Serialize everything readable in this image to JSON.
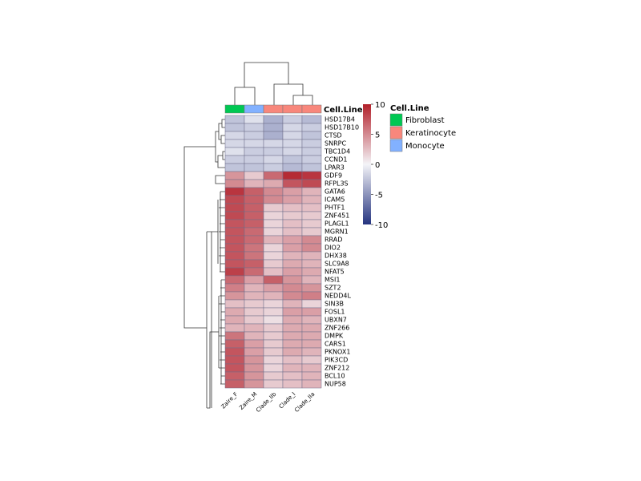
{
  "chart_data": {
    "type": "heatmap",
    "title": "",
    "columns": [
      "Zaire_F",
      "Zaire_M",
      "Clade_IIb",
      "Clade_I",
      "Clade_IIa"
    ],
    "rows": [
      "HSD17B4",
      "HSD17B10",
      "CTSD",
      "SNRPC",
      "TBC1D4",
      "CCND1",
      "LPAR3",
      "GDF9",
      "RFPL3S",
      "GATA6",
      "ICAM5",
      "PHTF1",
      "ZNF451",
      "PLAGL1",
      "MGRN1",
      "RRAD",
      "DIO2",
      "DHX38",
      "SLC9A8",
      "NFAT5",
      "MSI1",
      "SZT2",
      "NEDD4L",
      "SIN3B",
      "FOSL1",
      "UBXN7",
      "ZNF266",
      "DMPK",
      "CARS1",
      "PKNOX1",
      "PIK3CD",
      "ZNF212",
      "BCL10",
      "NUP58"
    ],
    "values": [
      [
        -2.5,
        -1.0,
        -3.5,
        -2.0,
        -3.0
      ],
      [
        -2.5,
        -2.0,
        -3.5,
        -1.5,
        -2.0
      ],
      [
        -1.5,
        -2.0,
        -3.5,
        -1.5,
        -2.5
      ],
      [
        -1.5,
        -1.5,
        -1.5,
        -1.5,
        -2.0
      ],
      [
        -1.0,
        -2.0,
        -2.0,
        -1.5,
        -2.0
      ],
      [
        -2.0,
        -2.0,
        -1.5,
        -2.5,
        -2.0
      ],
      [
        -2.5,
        -2.5,
        -2.0,
        -3.0,
        -2.5
      ],
      [
        4.5,
        2.0,
        6.5,
        9.5,
        9.0
      ],
      [
        5.0,
        3.0,
        3.5,
        7.5,
        8.0
      ],
      [
        9.0,
        7.0,
        5.0,
        4.0,
        3.0
      ],
      [
        8.0,
        7.0,
        5.0,
        4.0,
        3.0
      ],
      [
        8.0,
        7.0,
        2.0,
        2.5,
        2.5
      ],
      [
        8.0,
        7.0,
        1.5,
        2.0,
        2.0
      ],
      [
        7.5,
        7.0,
        1.5,
        2.5,
        2.0
      ],
      [
        7.5,
        6.5,
        1.5,
        2.5,
        2.0
      ],
      [
        7.5,
        6.5,
        3.0,
        4.0,
        5.0
      ],
      [
        7.5,
        6.0,
        1.5,
        4.0,
        5.0
      ],
      [
        7.5,
        6.0,
        1.5,
        3.0,
        3.0
      ],
      [
        7.5,
        7.0,
        2.0,
        3.5,
        3.0
      ],
      [
        8.5,
        6.5,
        2.5,
        4.0,
        3.5
      ],
      [
        6.5,
        4.0,
        7.0,
        4.5,
        3.0
      ],
      [
        5.5,
        3.0,
        4.0,
        5.0,
        4.5
      ],
      [
        4.5,
        3.0,
        3.0,
        5.0,
        5.5
      ],
      [
        2.5,
        2.0,
        1.5,
        3.0,
        1.5
      ],
      [
        3.5,
        2.0,
        1.5,
        4.0,
        4.0
      ],
      [
        3.5,
        2.0,
        1.0,
        3.5,
        3.0
      ],
      [
        3.0,
        3.0,
        2.0,
        3.5,
        3.5
      ],
      [
        6.0,
        3.0,
        2.0,
        3.5,
        3.5
      ],
      [
        7.0,
        4.0,
        2.0,
        3.5,
        3.5
      ],
      [
        7.5,
        4.0,
        2.0,
        3.5,
        3.0
      ],
      [
        7.5,
        4.5,
        1.5,
        2.5,
        2.0
      ],
      [
        7.5,
        4.5,
        1.5,
        3.0,
        3.0
      ],
      [
        7.0,
        4.5,
        2.0,
        2.5,
        3.0
      ],
      [
        7.0,
        4.5,
        2.0,
        2.5,
        3.0
      ]
    ],
    "color_scale": {
      "min": -10,
      "max": 10,
      "ticks": [
        10,
        5,
        0,
        -5,
        -10
      ],
      "low_color": "#24337f",
      "mid_color": "#f4f4f8",
      "high_color": "#b2202a"
    },
    "annotation": {
      "title": "Cell.Line",
      "values": [
        "Fibroblast",
        "Monocyte",
        "Keratinocyte",
        "Keratinocyte",
        "Keratinocyte"
      ],
      "legend": [
        {
          "label": "Fibroblast",
          "color": "#00c853"
        },
        {
          "label": "Keratinocyte",
          "color": "#f8877c"
        },
        {
          "label": "Monocyte",
          "color": "#82b1ff"
        }
      ]
    },
    "legend_position": "right",
    "clustered_rows": true,
    "clustered_columns": true
  }
}
